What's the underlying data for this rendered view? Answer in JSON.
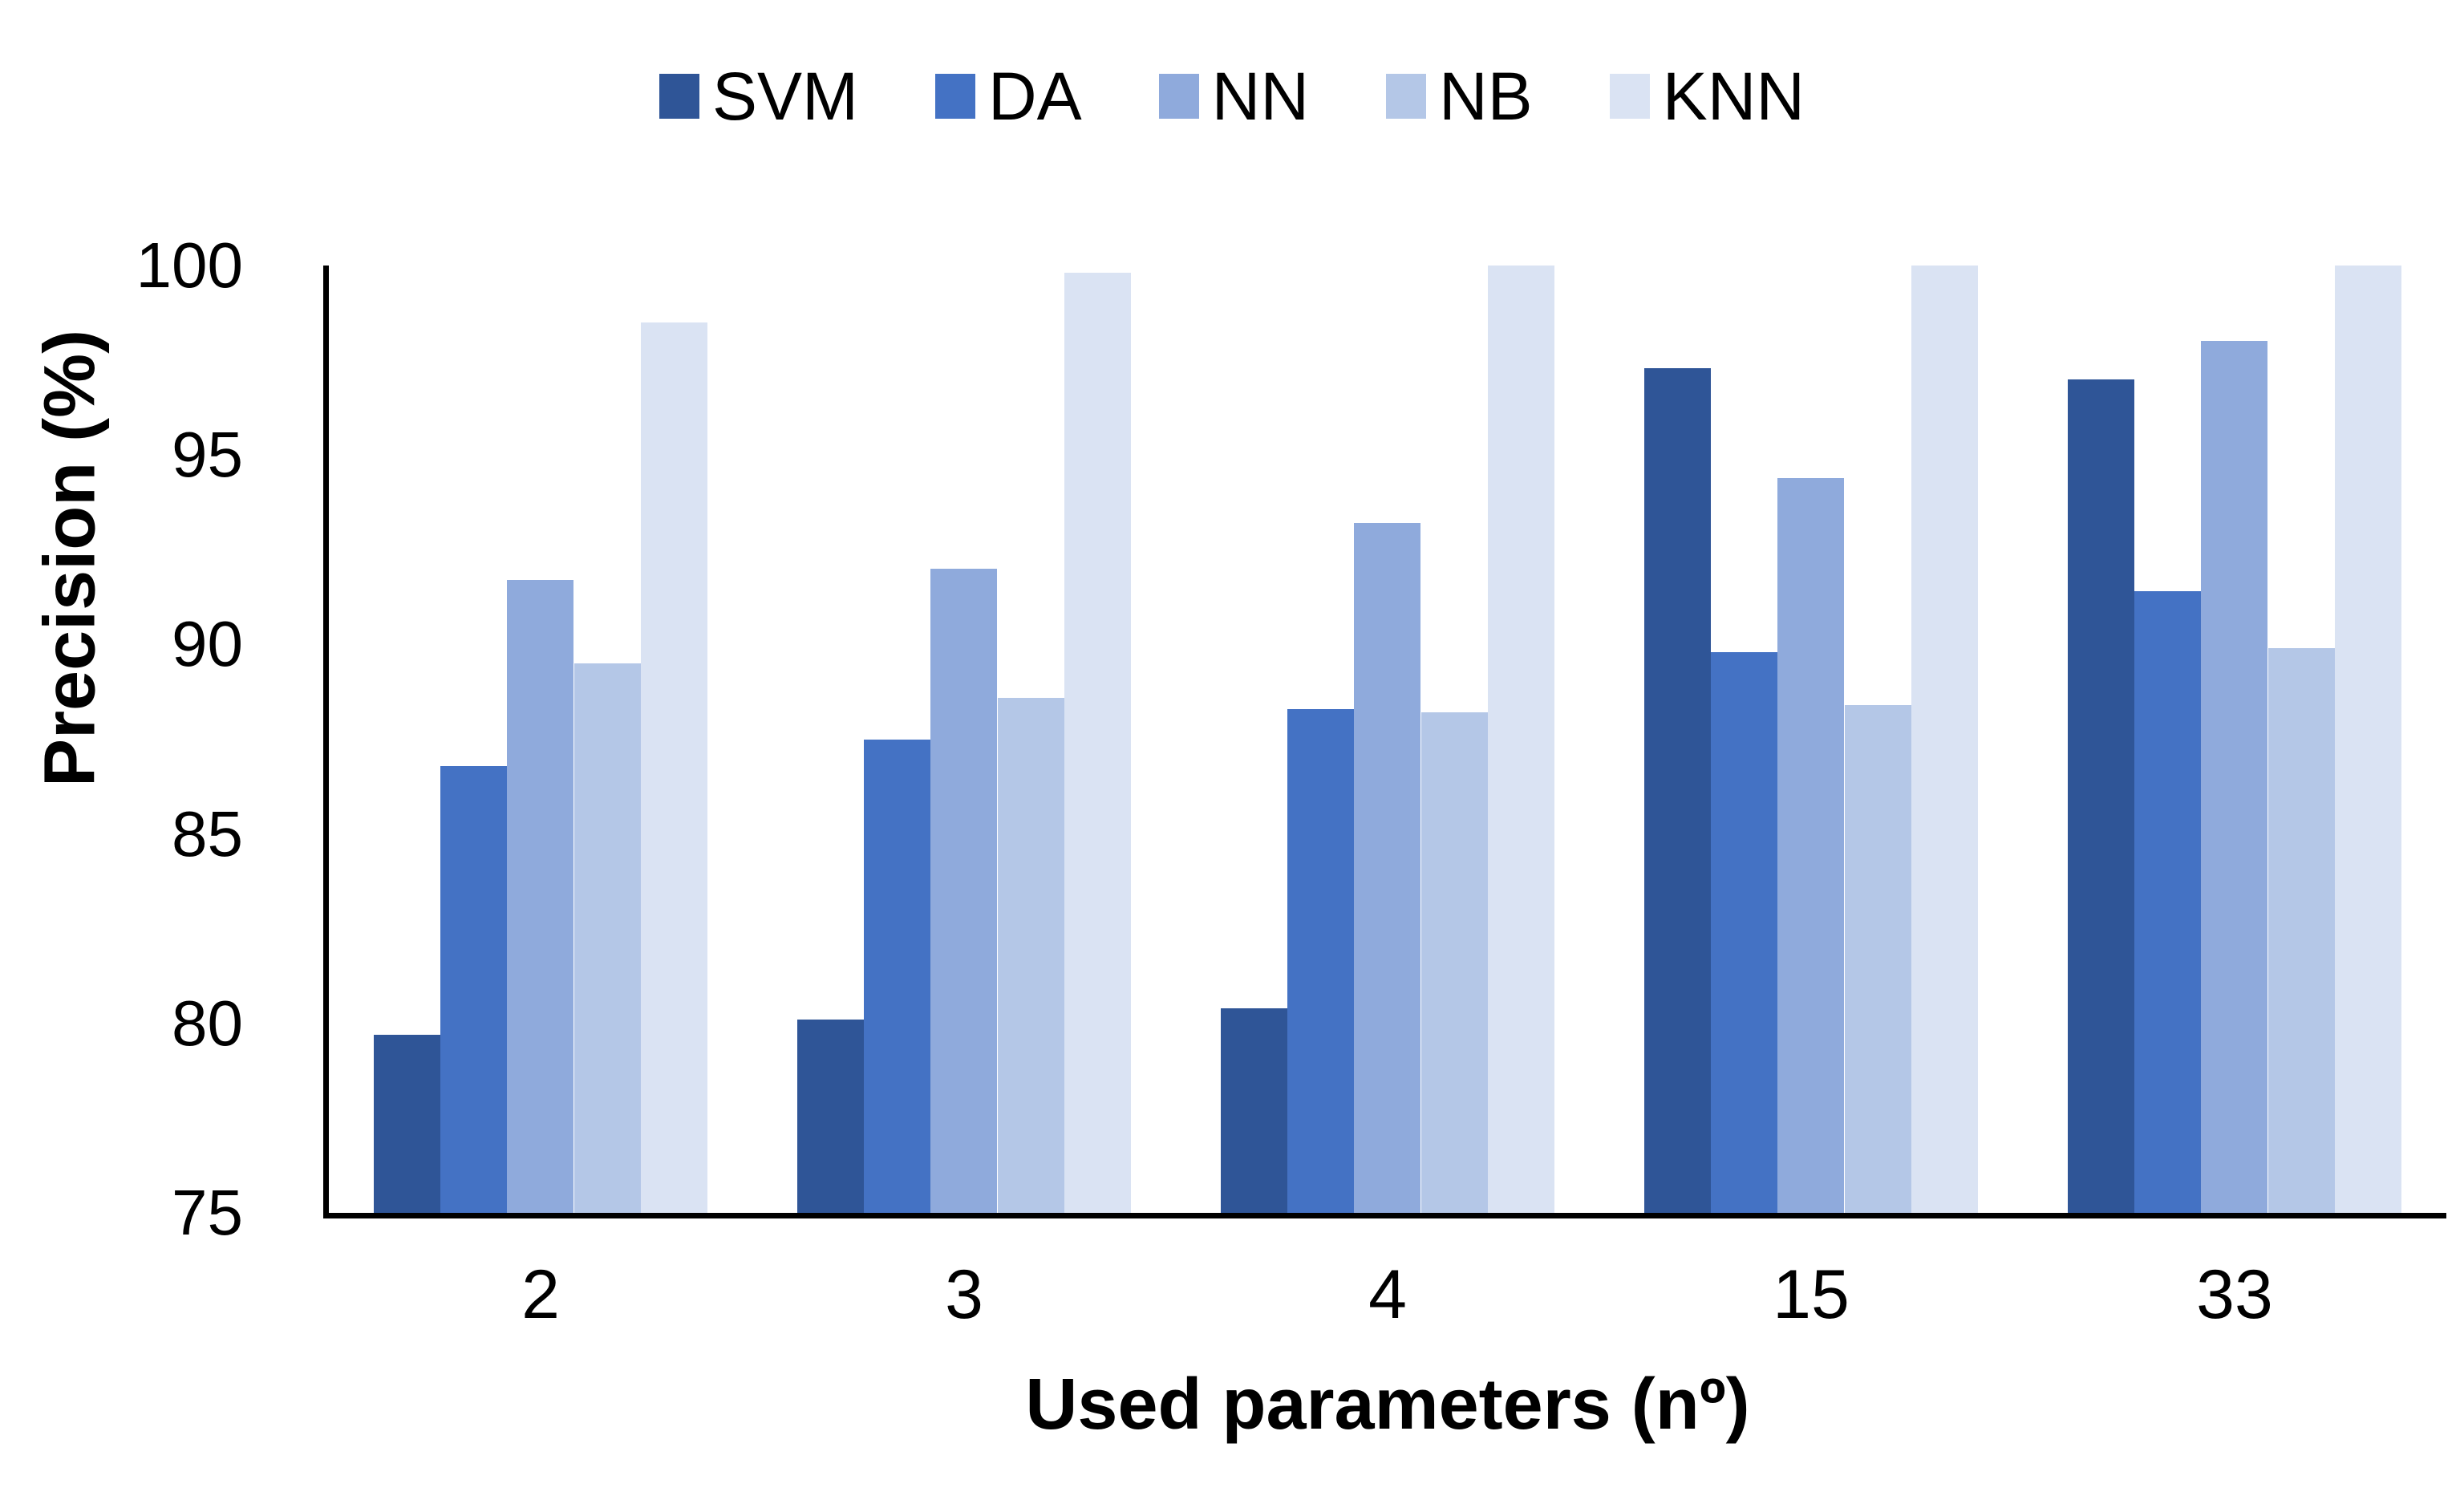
{
  "chart_data": {
    "type": "bar",
    "title": "",
    "categories": [
      "2",
      "3",
      "4",
      "15",
      "33"
    ],
    "series": [
      {
        "name": "SVM",
        "color": "#2F5597",
        "values": [
          79.7,
          80.1,
          80.4,
          97.3,
          97.0
        ]
      },
      {
        "name": "DA",
        "color": "#4472C4",
        "values": [
          86.8,
          87.5,
          88.3,
          89.8,
          91.4
        ]
      },
      {
        "name": "NN",
        "color": "#8FAADC",
        "values": [
          91.7,
          92.0,
          93.2,
          94.4,
          98.0
        ]
      },
      {
        "name": "NB",
        "color": "#B4C7E7",
        "values": [
          89.5,
          88.6,
          88.2,
          88.4,
          89.9
        ]
      },
      {
        "name": "KNN",
        "color": "#DAE3F3",
        "values": [
          98.5,
          99.8,
          100.0,
          100.0,
          100.0
        ]
      }
    ],
    "xlabel": "Used parameters (nº)",
    "ylabel": "Precision (%)",
    "ylim": [
      75,
      100
    ],
    "yticks": [
      75,
      80,
      85,
      90,
      95,
      100
    ],
    "legend_position": "top",
    "grid": false,
    "axis_color": "#000000",
    "background_color": "#FFFFFF"
  }
}
